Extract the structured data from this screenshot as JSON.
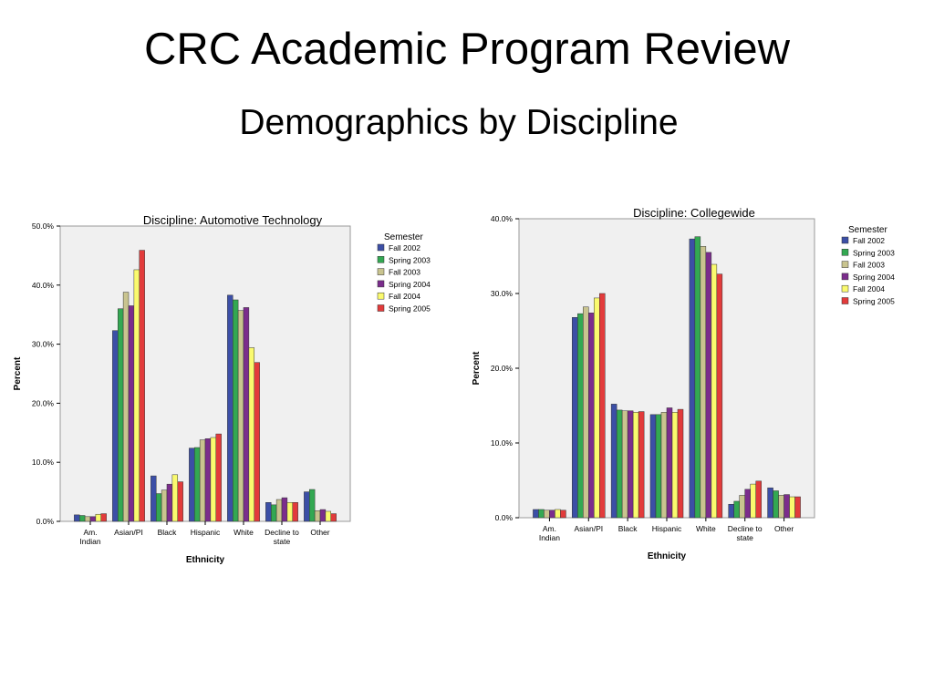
{
  "slide": {
    "title": "CRC Academic Program Review",
    "subtitle": "Demographics by Discipline"
  },
  "chart_data": [
    {
      "type": "bar",
      "title": "Discipline: Automotive Technology",
      "xlabel": "Ethnicity",
      "ylabel": "Percent",
      "ylim": [
        0,
        50
      ],
      "yticks": [
        "0.0%",
        "10.0%",
        "20.0%",
        "30.0%",
        "40.0%",
        "50.0%"
      ],
      "categories": [
        "Am. Indian",
        "Asian/PI",
        "Black",
        "Hispanic",
        "White",
        "Decline to state",
        "Other"
      ],
      "legend_title": "Semester",
      "legend_position": "right",
      "grid": false,
      "series": [
        {
          "name": "Fall 2002",
          "color": "#3c4fa6",
          "values": [
            1.1,
            32.3,
            7.7,
            12.4,
            38.3,
            3.2,
            5.0
          ]
        },
        {
          "name": "Spring 2003",
          "color": "#33a852",
          "values": [
            1.0,
            36.0,
            4.7,
            12.5,
            37.5,
            2.8,
            5.4
          ]
        },
        {
          "name": "Fall 2003",
          "color": "#c9c48f",
          "values": [
            0.8,
            38.8,
            5.3,
            13.8,
            35.7,
            3.7,
            1.8
          ]
        },
        {
          "name": "Spring 2004",
          "color": "#7b2d8c",
          "values": [
            0.8,
            36.5,
            6.3,
            14.0,
            36.2,
            4.0,
            2.0
          ]
        },
        {
          "name": "Fall 2004",
          "color": "#fafa6e",
          "values": [
            1.2,
            42.6,
            7.9,
            14.2,
            29.4,
            3.2,
            1.7
          ]
        },
        {
          "name": "Spring 2005",
          "color": "#e23b3b",
          "values": [
            1.3,
            45.9,
            6.7,
            14.8,
            26.9,
            3.2,
            1.3
          ]
        }
      ]
    },
    {
      "type": "bar",
      "title": "Discipline: Collegewide",
      "xlabel": "Ethnicity",
      "ylabel": "Percent",
      "ylim": [
        0,
        40
      ],
      "yticks": [
        "0.0%",
        "10.0%",
        "20.0%",
        "30.0%",
        "40.0%"
      ],
      "categories": [
        "Am. Indian",
        "Asian/PI",
        "Black",
        "Hispanic",
        "White",
        "Decline to state",
        "Other"
      ],
      "legend_title": "Semester",
      "legend_position": "right",
      "grid": false,
      "series": [
        {
          "name": "Fall 2002",
          "color": "#3c4fa6",
          "values": [
            1.1,
            26.8,
            15.2,
            13.8,
            37.3,
            1.8,
            4.0
          ]
        },
        {
          "name": "Spring 2003",
          "color": "#33a852",
          "values": [
            1.1,
            27.3,
            14.4,
            13.8,
            37.6,
            2.2,
            3.6
          ]
        },
        {
          "name": "Fall 2003",
          "color": "#c9c48f",
          "values": [
            1.0,
            28.2,
            14.3,
            14.1,
            36.3,
            3.0,
            3.0
          ]
        },
        {
          "name": "Spring 2004",
          "color": "#7b2d8c",
          "values": [
            1.0,
            27.4,
            14.3,
            14.7,
            35.5,
            3.8,
            3.1
          ]
        },
        {
          "name": "Fall 2004",
          "color": "#fafa6e",
          "values": [
            1.1,
            29.4,
            14.1,
            14.1,
            33.9,
            4.5,
            2.8
          ]
        },
        {
          "name": "Spring 2005",
          "color": "#e23b3b",
          "values": [
            1.0,
            30.0,
            14.2,
            14.5,
            32.6,
            4.9,
            2.8
          ]
        }
      ]
    }
  ]
}
